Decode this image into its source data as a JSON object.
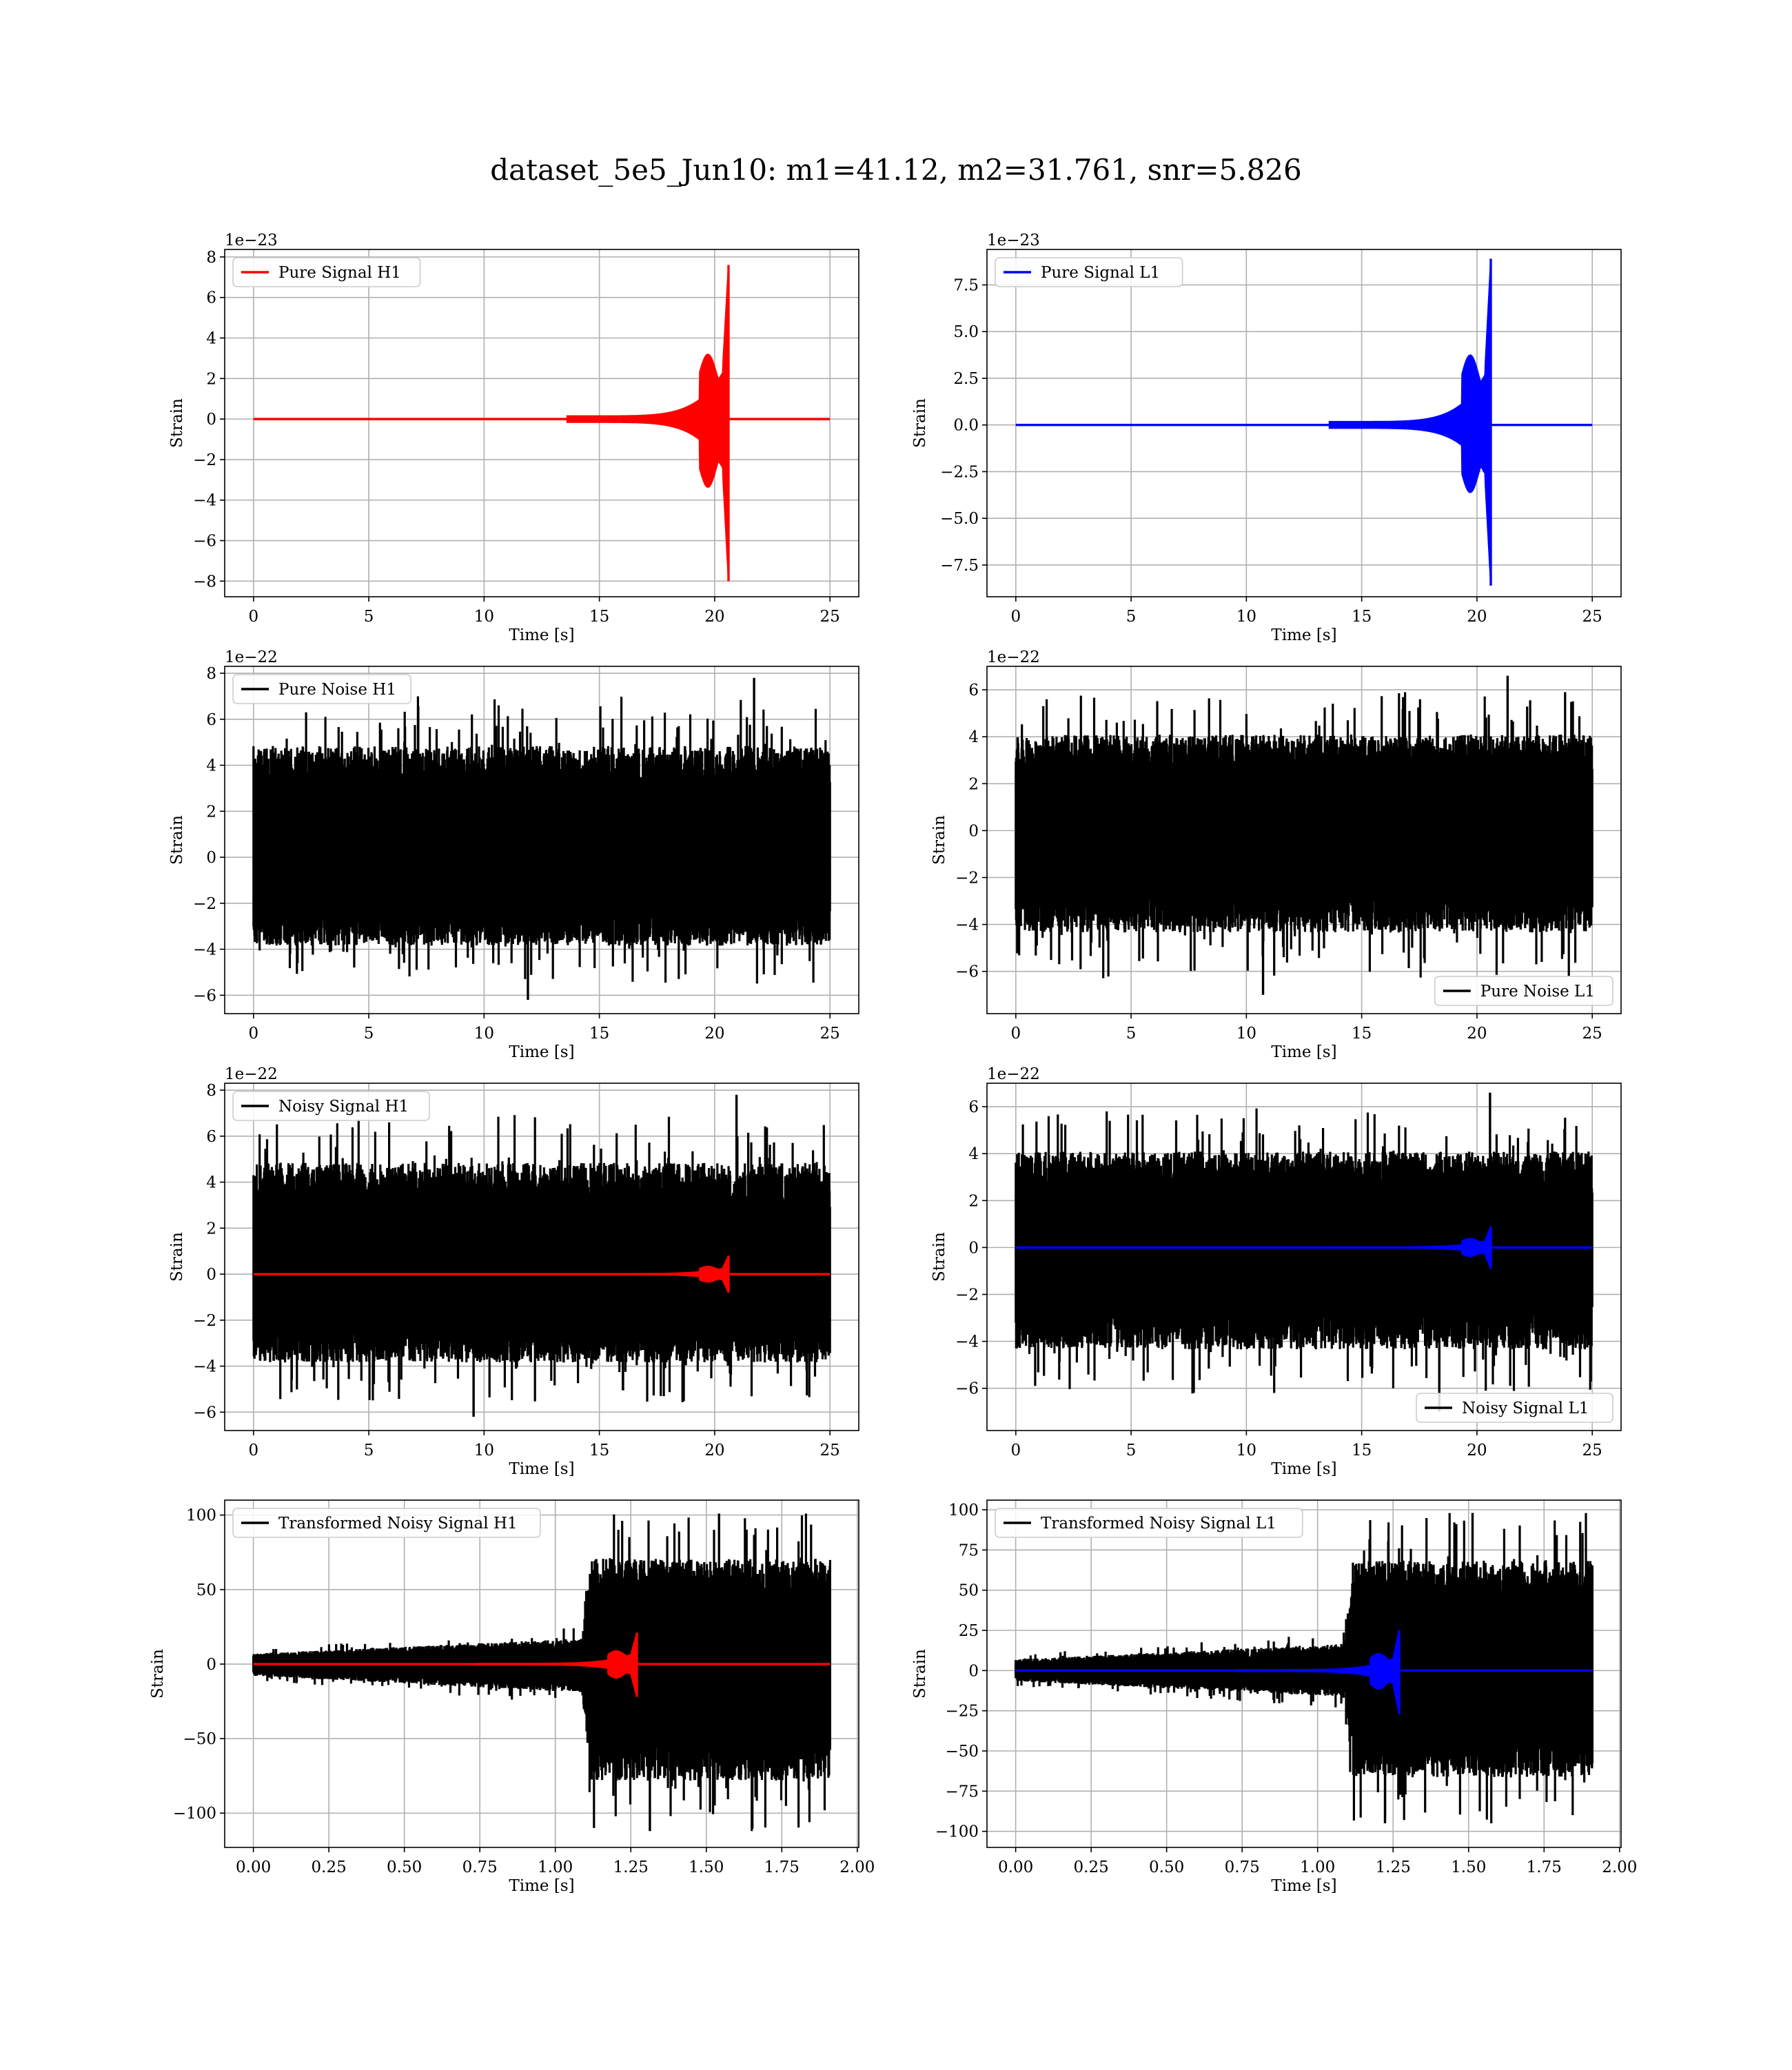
{
  "title": "dataset_5e5_Jun10: m1=41.12, m2=31.761, snr=5.826",
  "chart_data": [
    {
      "type": "line",
      "xlabel": "Time [s]",
      "ylabel": "Strain",
      "xlim": [
        -1.25,
        26.25
      ],
      "ylim": [
        -8.77,
        8.37
      ],
      "xticks": [
        0,
        5,
        10,
        15,
        20,
        25
      ],
      "xtick_labels": [
        "0",
        "5",
        "10",
        "15",
        "20",
        "25"
      ],
      "yticks": [
        -8,
        -6,
        -4,
        -2,
        0,
        2,
        4,
        6,
        8
      ],
      "ytick_labels": [
        "−8",
        "−6",
        "−4",
        "−2",
        "0",
        "2",
        "4",
        "6",
        "8"
      ],
      "offset_label": "1e−23",
      "legend": "upper-left",
      "grid": true,
      "series": [
        {
          "name": "Pure Signal H1",
          "color": "#ff0000",
          "kind": "chirp",
          "x": [
            0,
            25
          ],
          "flat_value": 0,
          "merger_time": 20.6,
          "peak_max": 7.6,
          "peak_min": -8.0
        }
      ]
    },
    {
      "type": "line",
      "xlabel": "Time [s]",
      "ylabel": "Strain",
      "xlim": [
        -1.25,
        26.25
      ],
      "ylim": [
        -9.2,
        9.4
      ],
      "xticks": [
        0,
        5,
        10,
        15,
        20,
        25
      ],
      "xtick_labels": [
        "0",
        "5",
        "10",
        "15",
        "20",
        "25"
      ],
      "yticks": [
        -7.5,
        -5.0,
        -2.5,
        0.0,
        2.5,
        5.0,
        7.5
      ],
      "ytick_labels": [
        "−7.5",
        "−5.0",
        "−2.5",
        "0.0",
        "2.5",
        "5.0",
        "7.5"
      ],
      "offset_label": "1e−23",
      "legend": "upper-left",
      "grid": true,
      "series": [
        {
          "name": "Pure Signal L1",
          "color": "#0000ff",
          "kind": "chirp",
          "x": [
            0,
            25
          ],
          "flat_value": 0,
          "merger_time": 20.6,
          "peak_max": 8.9,
          "peak_min": -8.6
        }
      ]
    },
    {
      "type": "line",
      "xlabel": "Time [s]",
      "ylabel": "Strain",
      "xlim": [
        -1.25,
        26.25
      ],
      "ylim": [
        -6.8,
        8.3
      ],
      "xticks": [
        0,
        5,
        10,
        15,
        20,
        25
      ],
      "xtick_labels": [
        "0",
        "5",
        "10",
        "15",
        "20",
        "25"
      ],
      "yticks": [
        -6,
        -4,
        -2,
        0,
        2,
        4,
        6,
        8
      ],
      "ytick_labels": [
        "−6",
        "−4",
        "−2",
        "0",
        "2",
        "4",
        "6",
        "8"
      ],
      "offset_label": "1e−22",
      "legend": "upper-left",
      "grid": true,
      "series": [
        {
          "name": "Pure Noise H1",
          "color": "#000000",
          "kind": "noise",
          "x": [
            0,
            25
          ],
          "max": 7.8,
          "min": -6.2
        }
      ]
    },
    {
      "type": "line",
      "xlabel": "Time [s]",
      "ylabel": "Strain",
      "xlim": [
        -1.25,
        26.25
      ],
      "ylim": [
        -7.8,
        7.0
      ],
      "xticks": [
        0,
        5,
        10,
        15,
        20,
        25
      ],
      "xtick_labels": [
        "0",
        "5",
        "10",
        "15",
        "20",
        "25"
      ],
      "yticks": [
        -6,
        -4,
        -2,
        0,
        2,
        4,
        6
      ],
      "ytick_labels": [
        "−6",
        "−4",
        "−2",
        "0",
        "2",
        "4",
        "6"
      ],
      "offset_label": "1e−22",
      "legend": "lower-right",
      "grid": true,
      "series": [
        {
          "name": "Pure Noise L1",
          "color": "#000000",
          "kind": "noise",
          "x": [
            0,
            25
          ],
          "max": 6.6,
          "min": -7.0
        }
      ]
    },
    {
      "type": "line",
      "xlabel": "Time [s]",
      "ylabel": "Strain",
      "xlim": [
        -1.25,
        26.25
      ],
      "ylim": [
        -6.8,
        8.3
      ],
      "xticks": [
        0,
        5,
        10,
        15,
        20,
        25
      ],
      "xtick_labels": [
        "0",
        "5",
        "10",
        "15",
        "20",
        "25"
      ],
      "yticks": [
        -6,
        -4,
        -2,
        0,
        2,
        4,
        6,
        8
      ],
      "ytick_labels": [
        "−6",
        "−4",
        "−2",
        "0",
        "2",
        "4",
        "6",
        "8"
      ],
      "offset_label": "1e−22",
      "legend": "upper-left",
      "grid": true,
      "series": [
        {
          "name": "Noisy Signal H1",
          "color": "#000000",
          "kind": "noise",
          "x": [
            0,
            25
          ],
          "max": 7.8,
          "min": -6.2
        },
        {
          "name": "",
          "color": "#ff0000",
          "kind": "chirp",
          "x": [
            0,
            25
          ],
          "flat_value": 0,
          "merger_time": 20.6,
          "peak_max": 0.8,
          "peak_min": -0.8
        }
      ]
    },
    {
      "type": "line",
      "xlabel": "Time [s]",
      "ylabel": "Strain",
      "xlim": [
        -1.25,
        26.25
      ],
      "ylim": [
        -7.8,
        7.0
      ],
      "xticks": [
        0,
        5,
        10,
        15,
        20,
        25
      ],
      "xtick_labels": [
        "0",
        "5",
        "10",
        "15",
        "20",
        "25"
      ],
      "yticks": [
        -6,
        -4,
        -2,
        0,
        2,
        4,
        6
      ],
      "ytick_labels": [
        "−6",
        "−4",
        "−2",
        "0",
        "2",
        "4",
        "6"
      ],
      "offset_label": "1e−22",
      "legend": "lower-right",
      "grid": true,
      "series": [
        {
          "name": "Noisy Signal L1",
          "color": "#000000",
          "kind": "noise",
          "x": [
            0,
            25
          ],
          "max": 6.6,
          "min": -7.0
        },
        {
          "name": "",
          "color": "#0000ff",
          "kind": "chirp",
          "x": [
            0,
            25
          ],
          "flat_value": 0,
          "merger_time": 20.6,
          "peak_max": 0.9,
          "peak_min": -0.9
        }
      ]
    },
    {
      "type": "line",
      "xlabel": "Time [s]",
      "ylabel": "Strain",
      "xlim": [
        -0.095,
        2.005
      ],
      "ylim": [
        -123,
        110
      ],
      "xticks": [
        0.0,
        0.25,
        0.5,
        0.75,
        1.0,
        1.25,
        1.5,
        1.75,
        2.0
      ],
      "xtick_labels": [
        "0.00",
        "0.25",
        "0.50",
        "0.75",
        "1.00",
        "1.25",
        "1.50",
        "1.75",
        "2.00"
      ],
      "yticks": [
        -100,
        -50,
        0,
        50,
        100
      ],
      "ytick_labels": [
        "−100",
        "−50",
        "0",
        "50",
        "100"
      ],
      "offset_label": "",
      "legend": "upper-left",
      "grid": true,
      "series": [
        {
          "name": "Transformed Noisy Signal H1",
          "color": "#000000",
          "kind": "noise",
          "x": [
            0,
            1.91
          ],
          "max": 101,
          "min": -112
        },
        {
          "name": "",
          "color": "#ff0000",
          "kind": "chirp",
          "x": [
            0,
            1.91
          ],
          "flat_value": 0,
          "merger_time": 1.27,
          "peak_max": 21,
          "peak_min": -22
        }
      ]
    },
    {
      "type": "line",
      "xlabel": "Time [s]",
      "ylabel": "Strain",
      "xlim": [
        -0.095,
        2.005
      ],
      "ylim": [
        -110,
        106
      ],
      "xticks": [
        0.0,
        0.25,
        0.5,
        0.75,
        1.0,
        1.25,
        1.5,
        1.75,
        2.0
      ],
      "xtick_labels": [
        "0.00",
        "0.25",
        "0.50",
        "0.75",
        "1.00",
        "1.25",
        "1.50",
        "1.75",
        "2.00"
      ],
      "yticks": [
        -100,
        -75,
        -50,
        -25,
        0,
        25,
        50,
        75,
        100
      ],
      "ytick_labels": [
        "−100",
        "−75",
        "−50",
        "−25",
        "0",
        "25",
        "50",
        "75",
        "100"
      ],
      "offset_label": "",
      "legend": "upper-left",
      "grid": true,
      "series": [
        {
          "name": "Transformed Noisy Signal L1",
          "color": "#000000",
          "kind": "noise",
          "x": [
            0,
            1.91
          ],
          "max": 98,
          "min": -95
        },
        {
          "name": "",
          "color": "#0000ff",
          "kind": "chirp",
          "x": [
            0,
            1.91
          ],
          "flat_value": 0,
          "merger_time": 1.27,
          "peak_max": 25,
          "peak_min": -27
        }
      ]
    }
  ]
}
